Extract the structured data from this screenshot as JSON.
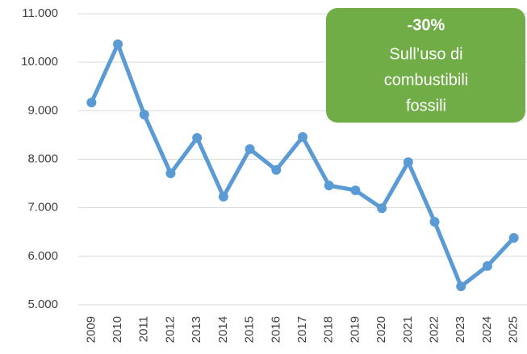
{
  "chart_data": {
    "type": "line",
    "categories": [
      "2009",
      "2010",
      "2011",
      "2012",
      "2013",
      "2014",
      "2015",
      "2016",
      "2017",
      "2018",
      "2019",
      "2020",
      "2021",
      "2022",
      "2023",
      "2024",
      "2025"
    ],
    "series": [
      {
        "color": "#5b9bd5",
        "values": [
          9170,
          10370,
          8920,
          7710,
          8440,
          7230,
          8210,
          7780,
          8460,
          7460,
          7360,
          6990,
          7940,
          6710,
          5380,
          5800,
          6380
        ]
      }
    ],
    "ylim": [
      5000,
      11000
    ],
    "yticks": [
      {
        "value": 5000,
        "label": "5.000"
      },
      {
        "value": 6000,
        "label": "6.000"
      },
      {
        "value": 7000,
        "label": "7.000"
      },
      {
        "value": 8000,
        "label": "8.000"
      },
      {
        "value": 9000,
        "label": "9.000"
      },
      {
        "value": 10000,
        "label": "10.000"
      },
      {
        "value": 11000,
        "label": "11.000"
      }
    ],
    "grid": true,
    "annotation": {
      "title": "-30%",
      "lines": [
        "Sull’uso di",
        "combustibili",
        "fossili"
      ],
      "color": "#70ad47"
    }
  }
}
